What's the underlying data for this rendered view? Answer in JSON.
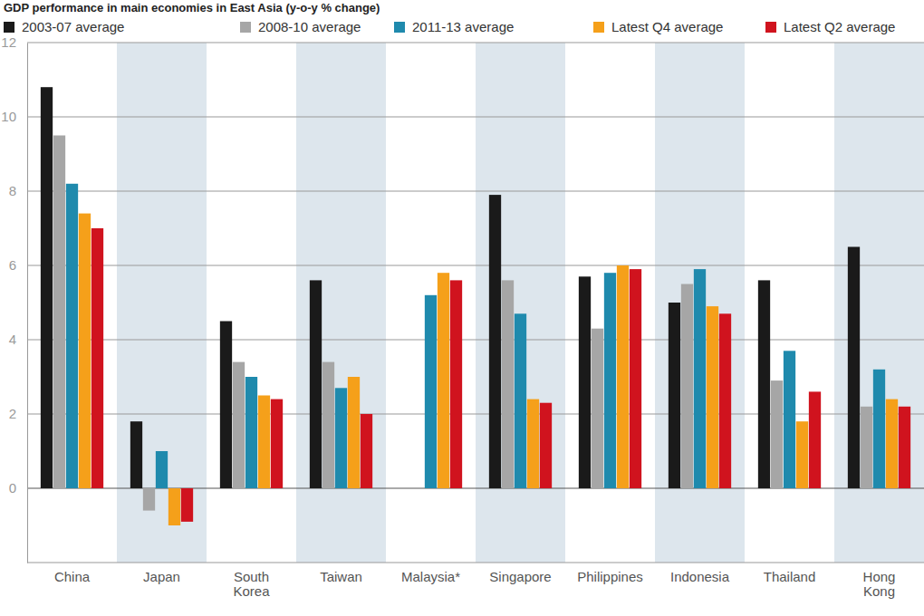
{
  "chart_data": {
    "type": "bar",
    "title": "GDP performance in main economies in East Asia (y-o-y % change)",
    "categories": [
      "China",
      "Japan",
      "South Korea",
      "Taiwan",
      "Malaysia*",
      "Singapore",
      "Philippines",
      "Indonesia",
      "Thailand",
      "Hong Kong"
    ],
    "series": [
      {
        "name": "2003-07 average",
        "color": "#1a1a1a",
        "values": [
          10.8,
          1.8,
          4.5,
          5.6,
          null,
          7.9,
          5.7,
          5.0,
          5.6,
          6.5
        ]
      },
      {
        "name": "2008-10 average",
        "color": "#a6a6a6",
        "values": [
          9.5,
          -0.6,
          3.4,
          3.4,
          null,
          5.6,
          4.3,
          5.5,
          2.9,
          2.2
        ]
      },
      {
        "name": "2011-13 average",
        "color": "#1f8aad",
        "values": [
          8.2,
          1.0,
          3.0,
          2.7,
          5.2,
          4.7,
          5.8,
          5.9,
          3.7,
          3.2
        ]
      },
      {
        "name": "Latest Q4 average",
        "color": "#f5a01a",
        "values": [
          7.4,
          -1.0,
          2.5,
          3.0,
          5.8,
          2.4,
          6.0,
          4.9,
          1.8,
          2.4
        ]
      },
      {
        "name": "Latest Q2 average",
        "color": "#d0131e",
        "values": [
          7.0,
          -0.9,
          2.4,
          2.0,
          5.6,
          2.3,
          5.9,
          4.7,
          2.6,
          2.2
        ]
      }
    ],
    "ylim": [
      -2,
      12
    ],
    "yticks": [
      0,
      2,
      4,
      6,
      8,
      10,
      12
    ],
    "grid": true,
    "legend": "top"
  }
}
